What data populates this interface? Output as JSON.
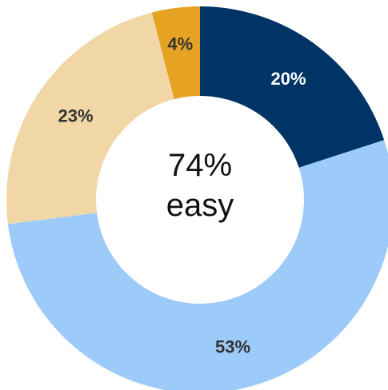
{
  "chart_data": {
    "type": "pie",
    "donut": true,
    "slices": [
      {
        "value": 20,
        "label": "20%",
        "color": "#003366",
        "label_color": "#ffffff"
      },
      {
        "value": 53,
        "label": "53%",
        "color": "#9ccbfa",
        "label_color": "#333333"
      },
      {
        "value": 23,
        "label": "23%",
        "color": "#f2d7a6",
        "label_color": "#333333"
      },
      {
        "value": 4,
        "label": "4%",
        "color": "#e6a323",
        "label_color": "#333333"
      }
    ],
    "center": {
      "line1": "74%",
      "line2": "easy"
    },
    "start": "top",
    "direction": "clockwise"
  }
}
